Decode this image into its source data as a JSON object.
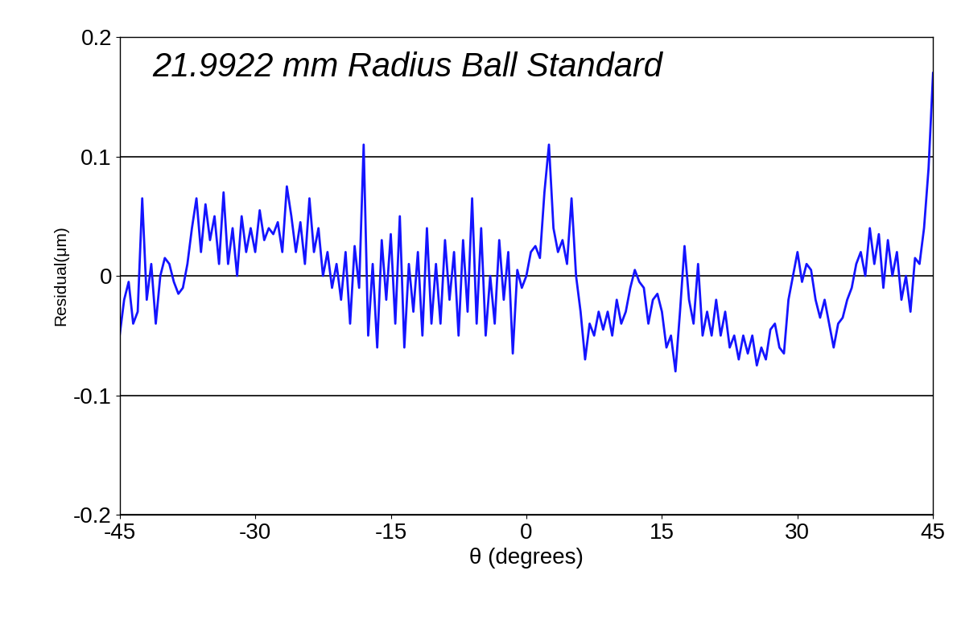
{
  "chart_data": {
    "type": "line",
    "title": "21.9922 mm Radius Ball Standard",
    "x_label": "θ (degrees)",
    "y_label": "Residual(μm)",
    "x": [
      -45,
      -44.5,
      -44,
      -43.5,
      -43,
      -42.5,
      -42,
      -41.5,
      -41,
      -40.5,
      -40,
      -39.5,
      -39,
      -38.5,
      -38,
      -37.5,
      -37,
      -36.5,
      -36,
      -35.5,
      -35,
      -34.5,
      -34,
      -33.5,
      -33,
      -32.5,
      -32,
      -31.5,
      -31,
      -30.5,
      -30,
      -29.5,
      -29,
      -28.5,
      -28,
      -27.5,
      -27,
      -26.5,
      -26,
      -25.5,
      -25,
      -24.5,
      -24,
      -23.5,
      -23,
      -22.5,
      -22,
      -21.5,
      -21,
      -20.5,
      -20,
      -19.5,
      -19,
      -18.5,
      -18,
      -17.5,
      -17,
      -16.5,
      -16,
      -15.5,
      -15,
      -14.5,
      -14,
      -13.5,
      -13,
      -12.5,
      -12,
      -11.5,
      -11,
      -10.5,
      -10,
      -9.5,
      -9,
      -8.5,
      -8,
      -7.5,
      -7,
      -6.5,
      -6,
      -5.5,
      -5,
      -4.5,
      -4,
      -3.5,
      -3,
      -2.5,
      -2,
      -1.5,
      -1,
      -0.5,
      0,
      0.5,
      1,
      1.5,
      2,
      2.5,
      3,
      3.5,
      4,
      4.5,
      5,
      5.5,
      6,
      6.5,
      7,
      7.5,
      8,
      8.5,
      9,
      9.5,
      10,
      10.5,
      11,
      11.5,
      12,
      12.5,
      13,
      13.5,
      14,
      14.5,
      15,
      15.5,
      16,
      16.5,
      17,
      17.5,
      18,
      18.5,
      19,
      19.5,
      20,
      20.5,
      21,
      21.5,
      22,
      22.5,
      23,
      23.5,
      24,
      24.5,
      25,
      25.5,
      26,
      26.5,
      27,
      27.5,
      28,
      28.5,
      29,
      29.5,
      30,
      30.5,
      31,
      31.5,
      32,
      32.5,
      33,
      33.5,
      34,
      34.5,
      35,
      35.5,
      36,
      36.5,
      37,
      37.5,
      38,
      38.5,
      39,
      39.5,
      40,
      40.5,
      41,
      41.5,
      42,
      42.5,
      43,
      43.5,
      44,
      44.5,
      45
    ],
    "values": [
      -0.05,
      -0.02,
      -0.005,
      -0.04,
      -0.03,
      0.065,
      -0.02,
      0.01,
      -0.04,
      0.0,
      0.015,
      0.01,
      -0.005,
      -0.015,
      -0.01,
      0.01,
      0.04,
      0.065,
      0.02,
      0.06,
      0.03,
      0.05,
      0.01,
      0.07,
      0.01,
      0.04,
      0.0,
      0.05,
      0.02,
      0.04,
      0.02,
      0.055,
      0.03,
      0.04,
      0.035,
      0.045,
      0.02,
      0.075,
      0.05,
      0.02,
      0.045,
      0.01,
      0.065,
      0.02,
      0.04,
      0.0,
      0.02,
      -0.01,
      0.01,
      -0.02,
      0.02,
      -0.04,
      0.025,
      -0.01,
      0.11,
      -0.05,
      0.01,
      -0.06,
      0.03,
      -0.02,
      0.035,
      -0.04,
      0.05,
      -0.06,
      0.01,
      -0.03,
      0.02,
      -0.05,
      0.04,
      -0.04,
      0.01,
      -0.04,
      0.03,
      -0.02,
      0.02,
      -0.05,
      0.03,
      -0.03,
      0.065,
      -0.04,
      0.04,
      -0.05,
      0.0,
      -0.04,
      0.03,
      -0.02,
      0.02,
      -0.065,
      0.005,
      -0.01,
      0.0,
      0.02,
      0.025,
      0.015,
      0.07,
      0.11,
      0.04,
      0.02,
      0.03,
      0.01,
      0.065,
      0.0,
      -0.03,
      -0.07,
      -0.04,
      -0.05,
      -0.03,
      -0.045,
      -0.03,
      -0.05,
      -0.02,
      -0.04,
      -0.03,
      -0.01,
      0.005,
      -0.005,
      -0.01,
      -0.04,
      -0.02,
      -0.015,
      -0.03,
      -0.06,
      -0.05,
      -0.08,
      -0.03,
      0.025,
      -0.02,
      -0.04,
      0.01,
      -0.05,
      -0.03,
      -0.05,
      -0.02,
      -0.05,
      -0.03,
      -0.06,
      -0.05,
      -0.07,
      -0.05,
      -0.065,
      -0.05,
      -0.075,
      -0.06,
      -0.07,
      -0.045,
      -0.04,
      -0.06,
      -0.065,
      -0.02,
      0.0,
      0.02,
      -0.005,
      0.01,
      0.005,
      -0.02,
      -0.035,
      -0.02,
      -0.04,
      -0.06,
      -0.04,
      -0.035,
      -0.02,
      -0.01,
      0.01,
      0.02,
      0.0,
      0.04,
      0.01,
      0.035,
      -0.01,
      0.03,
      0.0,
      0.02,
      -0.02,
      0.0,
      -0.03,
      0.015,
      0.01,
      0.04,
      0.09,
      0.17
    ],
    "color": "#1414ff",
    "xlim": [
      -45,
      45
    ],
    "xticks": [
      -45,
      -30,
      -15,
      0,
      15,
      30,
      45
    ],
    "ylim": [
      -0.2,
      0.2
    ],
    "yticks": [
      -0.2,
      -0.1,
      0,
      0.1,
      0.2
    ],
    "grid": true
  }
}
